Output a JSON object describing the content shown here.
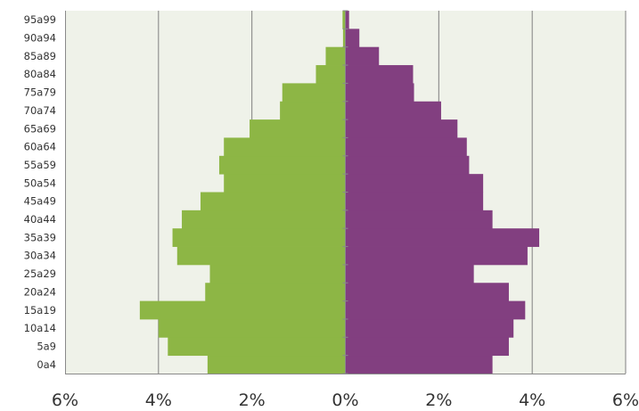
{
  "chart_data": {
    "type": "bar",
    "orientation": "horizontal",
    "style": "population-pyramid",
    "categories": [
      "0a4",
      "5a9",
      "10a14",
      "15a19",
      "20a24",
      "25a29",
      "30a34",
      "35a39",
      "40a44",
      "45a49",
      "50a54",
      "55a59",
      "60a64",
      "65a69",
      "70a74",
      "75a79",
      "80a84",
      "85a89",
      "90a94",
      "95a99"
    ],
    "series": [
      {
        "side": "left",
        "color": "#8db645",
        "values": [
          2.95,
          3.8,
          4.0,
          4.4,
          3.0,
          2.9,
          3.6,
          3.7,
          3.5,
          3.1,
          2.6,
          2.7,
          2.6,
          2.05,
          1.4,
          1.35,
          0.63,
          0.42,
          0.05,
          0.06
        ]
      },
      {
        "side": "right",
        "color": "#823f80",
        "values": [
          3.15,
          3.5,
          3.6,
          3.85,
          3.5,
          2.75,
          3.9,
          4.15,
          3.15,
          2.95,
          2.95,
          2.65,
          2.6,
          2.4,
          2.05,
          1.47,
          1.45,
          0.72,
          0.3,
          0.08
        ]
      }
    ],
    "xlim": [
      -6,
      6
    ],
    "x_ticks": [
      -6,
      -4,
      -2,
      0,
      2,
      4,
      6
    ],
    "x_tick_labels": [
      "6%",
      "4%",
      "2%",
      "0%",
      "2%",
      "4%",
      "6%"
    ],
    "grid": "vertical",
    "plot_background": "#eff2e9",
    "gridline_color": "#7f7f7f"
  }
}
